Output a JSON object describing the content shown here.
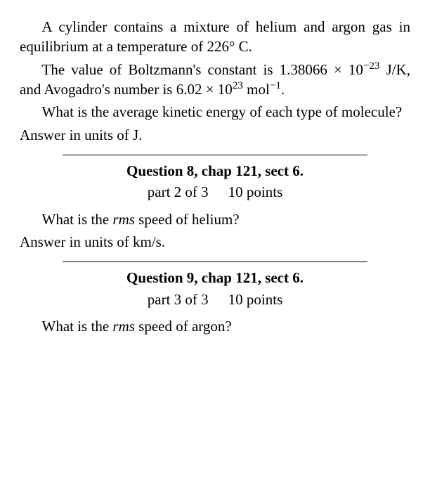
{
  "intro": {
    "p1": "A cylinder contains a mixture of helium and argon gas in equilibrium at a temperature of 226° C.",
    "p2_a": "The value of Boltzmann's constant is 1.38066 × 10",
    "p2_exp1": "−23",
    "p2_b": " J/K, and Avogadro's num­ber is 6.02 × 10",
    "p2_exp2": "23",
    "p2_c": " mol",
    "p2_exp3": "−1",
    "p2_d": ".",
    "p3": "What is the average kinetic energy of each type of molecule?",
    "p4": "Answer in units of  J."
  },
  "q8": {
    "heading": "Question 8, chap 121, sect 6.",
    "part": "part 2 of 3",
    "points": "10 points",
    "q_a": "What is the ",
    "q_rms": "rms",
    "q_b": " speed of helium?",
    "ans": "Answer in units of  km/s."
  },
  "q9": {
    "heading": "Question 9, chap 121, sect 6.",
    "part": "part 3 of 3",
    "points": "10 points",
    "q_a": "What is the ",
    "q_rms": "rms",
    "q_b": " speed of argon?"
  },
  "style": {
    "font_family": "Times New Roman, serif",
    "font_size_pt": 16,
    "text_color": "#000000",
    "background_color": "#ffffff",
    "rule_color": "#000000",
    "rule_width_pct": 78
  }
}
